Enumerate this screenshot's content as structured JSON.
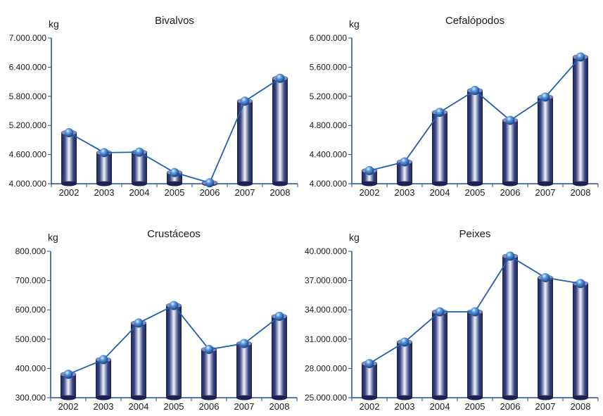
{
  "colors": {
    "axis": "#1f4e8c",
    "line": "#1f5faf",
    "bar_dark": "#1c2350",
    "bar_light": "#f2f4fb",
    "bar_mid": "#3a4480",
    "marker": "#4a8fd8"
  },
  "chart_data": [
    {
      "type": "bar",
      "title": "Bivalvos",
      "ylabel": "kg",
      "xlabel": "",
      "categories": [
        "2002",
        "2003",
        "2004",
        "2005",
        "2006",
        "2007",
        "2008"
      ],
      "values": [
        5050000,
        4640000,
        4650000,
        4230000,
        4020000,
        5700000,
        6170000
      ],
      "ylim": [
        4000000,
        7000000
      ],
      "yticks": [
        4000000,
        4600000,
        5200000,
        5800000,
        6400000,
        7000000
      ],
      "ytick_labels": [
        "4.000.000",
        "4.600.000",
        "5.200.000",
        "5.800.000",
        "6.400.000",
        "7.000.000"
      ]
    },
    {
      "type": "bar",
      "title": "Cefalópodos",
      "ylabel": "kg",
      "xlabel": "",
      "categories": [
        "2002",
        "2003",
        "2004",
        "2005",
        "2006",
        "2007",
        "2008"
      ],
      "values": [
        4180000,
        4300000,
        4980000,
        5280000,
        4870000,
        5190000,
        5740000
      ],
      "ylim": [
        4000000,
        6000000
      ],
      "yticks": [
        4000000,
        4400000,
        4800000,
        5200000,
        5600000,
        6000000
      ],
      "ytick_labels": [
        "4.000.000",
        "4.400.000",
        "4.800.000",
        "5.200.000",
        "5.600.000",
        "6.000.000"
      ]
    },
    {
      "type": "bar",
      "title": "Crustáceos",
      "ylabel": "kg",
      "xlabel": "",
      "categories": [
        "2002",
        "2003",
        "2004",
        "2005",
        "2006",
        "2007",
        "2008"
      ],
      "values": [
        380000,
        430000,
        555000,
        615000,
        465000,
        485000,
        578000
      ],
      "ylim": [
        300000,
        800000
      ],
      "yticks": [
        300000,
        400000,
        500000,
        600000,
        700000,
        800000
      ],
      "ytick_labels": [
        "300.000",
        "400.000",
        "500.000",
        "600.000",
        "700.000",
        "800.000"
      ]
    },
    {
      "type": "bar",
      "title": "Peixes",
      "ylabel": "kg",
      "xlabel": "",
      "categories": [
        "2002",
        "2003",
        "2004",
        "2005",
        "2006",
        "2007",
        "2008"
      ],
      "values": [
        28500000,
        30700000,
        33800000,
        33800000,
        39500000,
        37300000,
        36700000
      ],
      "ylim": [
        25000000,
        40000000
      ],
      "yticks": [
        25000000,
        28000000,
        31000000,
        34000000,
        37000000,
        40000000
      ],
      "ytick_labels": [
        "25.000.000",
        "28.000.000",
        "31.000.000",
        "34.000.000",
        "37.000.000",
        "40.000.000"
      ]
    }
  ]
}
